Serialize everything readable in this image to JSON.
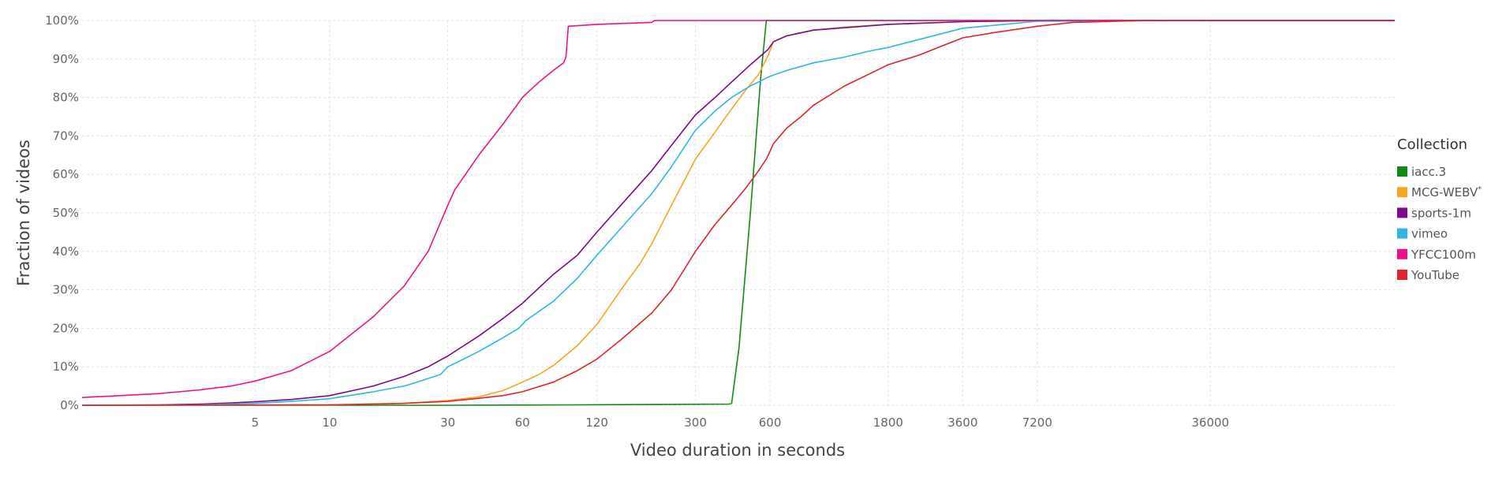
{
  "chart_data": {
    "type": "line",
    "title": "",
    "xlabel": "Video duration in seconds",
    "ylabel": "Fraction of videos",
    "x_scale": "log",
    "xlim": [
      1,
      200000
    ],
    "ylim": [
      0,
      1
    ],
    "grid": true,
    "legend_position": "right",
    "x_ticks": [
      {
        "value": 5,
        "label": "5"
      },
      {
        "value": 10,
        "label": "10"
      },
      {
        "value": 30,
        "label": "30"
      },
      {
        "value": 60,
        "label": "60"
      },
      {
        "value": 120,
        "label": "120"
      },
      {
        "value": 300,
        "label": "300"
      },
      {
        "value": 600,
        "label": "600"
      },
      {
        "value": 1800,
        "label": "1800"
      },
      {
        "value": 3600,
        "label": "3600"
      },
      {
        "value": 7200,
        "label": "7200"
      },
      {
        "value": 36000,
        "label": "36000"
      }
    ],
    "y_ticks": [
      {
        "value": 0,
        "label": "0%"
      },
      {
        "value": 0.1,
        "label": "10%"
      },
      {
        "value": 0.2,
        "label": "20%"
      },
      {
        "value": 0.3,
        "label": "30%"
      },
      {
        "value": 0.4,
        "label": "40%"
      },
      {
        "value": 0.5,
        "label": "50%"
      },
      {
        "value": 0.6,
        "label": "60%"
      },
      {
        "value": 0.7,
        "label": "70%"
      },
      {
        "value": 0.8,
        "label": "80%"
      },
      {
        "value": 0.9,
        "label": "90%"
      },
      {
        "value": 1.0,
        "label": "100%"
      }
    ],
    "legend": {
      "title": "Collection",
      "entries": [
        {
          "name": "iacc.3",
          "color": "#138a13",
          "superscript": ""
        },
        {
          "name": "MCG-WEBV",
          "color": "#f5a623",
          "superscript": "*"
        },
        {
          "name": "sports-1m",
          "color": "#7b0a8c",
          "superscript": ""
        },
        {
          "name": "vimeo",
          "color": "#2eb6e6",
          "superscript": ""
        },
        {
          "name": "YFCC100m",
          "color": "#ee1289",
          "superscript": ""
        },
        {
          "name": "YouTube",
          "color": "#e0242e",
          "superscript": ""
        }
      ]
    },
    "series": [
      {
        "name": "iacc.3",
        "color": "#138a13",
        "points": [
          [
            1,
            0
          ],
          [
            30,
            0
          ],
          [
            100,
            0.001
          ],
          [
            410,
            0.003
          ],
          [
            420,
            0.005
          ],
          [
            450,
            0.15
          ],
          [
            500,
            0.5
          ],
          [
            550,
            0.85
          ],
          [
            580,
            1.0
          ],
          [
            200000,
            1.0
          ]
        ]
      },
      {
        "name": "MCG-WEBV",
        "color": "#f5a623",
        "points": [
          [
            1,
            0
          ],
          [
            10,
            0.001
          ],
          [
            20,
            0.005
          ],
          [
            30,
            0.012
          ],
          [
            40,
            0.022
          ],
          [
            50,
            0.038
          ],
          [
            60,
            0.06
          ],
          [
            70,
            0.08
          ],
          [
            80,
            0.103
          ],
          [
            100,
            0.155
          ],
          [
            120,
            0.21
          ],
          [
            150,
            0.3
          ],
          [
            180,
            0.37
          ],
          [
            200,
            0.42
          ],
          [
            240,
            0.52
          ],
          [
            300,
            0.64
          ],
          [
            360,
            0.71
          ],
          [
            420,
            0.77
          ],
          [
            480,
            0.82
          ],
          [
            540,
            0.86
          ],
          [
            590,
            0.91
          ],
          [
            620,
            0.945
          ],
          [
            700,
            0.96
          ],
          [
            900,
            0.975
          ],
          [
            1200,
            0.983
          ],
          [
            1800,
            0.99
          ],
          [
            3600,
            0.997
          ],
          [
            7200,
            0.999
          ],
          [
            36000,
            1.0
          ],
          [
            200000,
            1.0
          ]
        ]
      },
      {
        "name": "sports-1m",
        "color": "#7b0a8c",
        "points": [
          [
            1,
            0
          ],
          [
            2,
            0.001
          ],
          [
            3,
            0.003
          ],
          [
            4,
            0.006
          ],
          [
            5,
            0.009
          ],
          [
            7,
            0.015
          ],
          [
            10,
            0.025
          ],
          [
            15,
            0.05
          ],
          [
            20,
            0.075
          ],
          [
            25,
            0.1
          ],
          [
            30,
            0.128
          ],
          [
            40,
            0.18
          ],
          [
            50,
            0.225
          ],
          [
            60,
            0.265
          ],
          [
            80,
            0.34
          ],
          [
            100,
            0.39
          ],
          [
            120,
            0.45
          ],
          [
            150,
            0.52
          ],
          [
            200,
            0.61
          ],
          [
            250,
            0.69
          ],
          [
            300,
            0.755
          ],
          [
            360,
            0.8
          ],
          [
            420,
            0.84
          ],
          [
            500,
            0.885
          ],
          [
            590,
            0.925
          ],
          [
            620,
            0.945
          ],
          [
            700,
            0.96
          ],
          [
            900,
            0.975
          ],
          [
            1800,
            0.99
          ],
          [
            3600,
            0.997
          ],
          [
            7200,
            1.0
          ],
          [
            200000,
            1.0
          ]
        ]
      },
      {
        "name": "vimeo",
        "color": "#2eb6e6",
        "points": [
          [
            1,
            0
          ],
          [
            3,
            0.001
          ],
          [
            5,
            0.005
          ],
          [
            7,
            0.01
          ],
          [
            10,
            0.017
          ],
          [
            15,
            0.035
          ],
          [
            20,
            0.05
          ],
          [
            22,
            0.058
          ],
          [
            28,
            0.08
          ],
          [
            30,
            0.1
          ],
          [
            33,
            0.113
          ],
          [
            40,
            0.14
          ],
          [
            50,
            0.175
          ],
          [
            58,
            0.2
          ],
          [
            62,
            0.22
          ],
          [
            80,
            0.27
          ],
          [
            100,
            0.33
          ],
          [
            120,
            0.39
          ],
          [
            150,
            0.46
          ],
          [
            200,
            0.55
          ],
          [
            240,
            0.62
          ],
          [
            300,
            0.715
          ],
          [
            360,
            0.765
          ],
          [
            420,
            0.8
          ],
          [
            500,
            0.83
          ],
          [
            600,
            0.855
          ],
          [
            700,
            0.87
          ],
          [
            900,
            0.89
          ],
          [
            1200,
            0.905
          ],
          [
            1500,
            0.92
          ],
          [
            1800,
            0.93
          ],
          [
            3600,
            0.98
          ],
          [
            7200,
            0.998
          ],
          [
            36000,
            1.0
          ],
          [
            200000,
            1.0
          ]
        ]
      },
      {
        "name": "YFCC100m",
        "color": "#ee1289",
        "points": [
          [
            1,
            0.02
          ],
          [
            2,
            0.03
          ],
          [
            3,
            0.04
          ],
          [
            4,
            0.05
          ],
          [
            5,
            0.063
          ],
          [
            7,
            0.09
          ],
          [
            10,
            0.14
          ],
          [
            15,
            0.23
          ],
          [
            20,
            0.31
          ],
          [
            25,
            0.4
          ],
          [
            30,
            0.52
          ],
          [
            32,
            0.56
          ],
          [
            40,
            0.65
          ],
          [
            50,
            0.73
          ],
          [
            57,
            0.78
          ],
          [
            60,
            0.8
          ],
          [
            70,
            0.84
          ],
          [
            80,
            0.87
          ],
          [
            88,
            0.89
          ],
          [
            90,
            0.905
          ],
          [
            92,
            0.985
          ],
          [
            120,
            0.99
          ],
          [
            200,
            0.995
          ],
          [
            205,
            1.0
          ],
          [
            200000,
            1.0
          ]
        ]
      },
      {
        "name": "YouTube",
        "color": "#e0242e",
        "points": [
          [
            1,
            0
          ],
          [
            10,
            0.001
          ],
          [
            20,
            0.005
          ],
          [
            30,
            0.01
          ],
          [
            40,
            0.018
          ],
          [
            50,
            0.025
          ],
          [
            60,
            0.035
          ],
          [
            80,
            0.06
          ],
          [
            100,
            0.09
          ],
          [
            120,
            0.12
          ],
          [
            150,
            0.17
          ],
          [
            200,
            0.24
          ],
          [
            240,
            0.3
          ],
          [
            300,
            0.4
          ],
          [
            360,
            0.47
          ],
          [
            420,
            0.52
          ],
          [
            480,
            0.565
          ],
          [
            540,
            0.61
          ],
          [
            580,
            0.64
          ],
          [
            600,
            0.66
          ],
          [
            620,
            0.68
          ],
          [
            700,
            0.72
          ],
          [
            800,
            0.75
          ],
          [
            900,
            0.78
          ],
          [
            1200,
            0.83
          ],
          [
            1500,
            0.86
          ],
          [
            1800,
            0.885
          ],
          [
            2400,
            0.91
          ],
          [
            3000,
            0.935
          ],
          [
            3600,
            0.955
          ],
          [
            5000,
            0.97
          ],
          [
            7200,
            0.985
          ],
          [
            10000,
            0.995
          ],
          [
            20000,
            1.0
          ],
          [
            200000,
            1.0
          ]
        ]
      }
    ]
  }
}
